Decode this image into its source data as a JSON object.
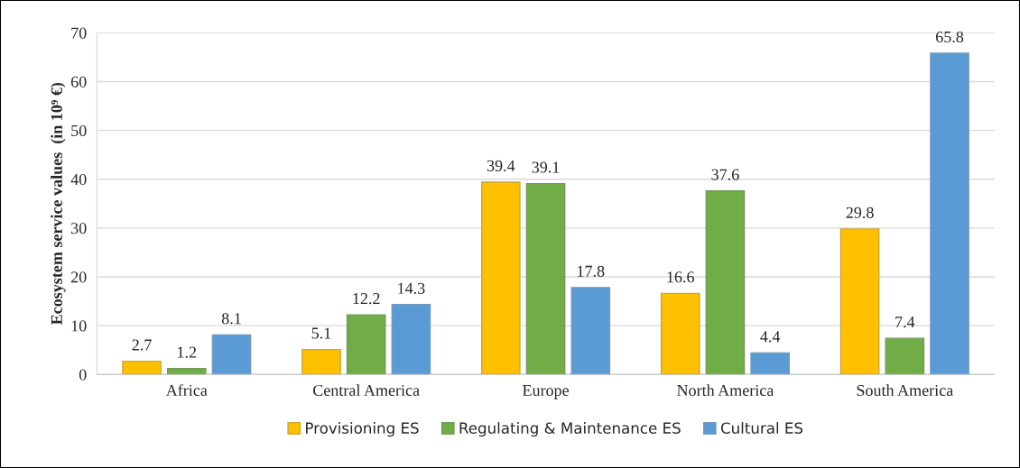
{
  "chart_data": {
    "type": "bar",
    "ylabel": "Ecosystem service values  (in 10⁹ €)",
    "categories": [
      "Africa",
      "Central America",
      "Europe",
      "North America",
      "South America"
    ],
    "series": [
      {
        "name": "Provisioning ES",
        "color": "#ffc000",
        "values": [
          2.7,
          5.1,
          39.4,
          16.6,
          29.8
        ]
      },
      {
        "name": "Regulating & Maintenance ES",
        "color": "#70ad47",
        "values": [
          1.2,
          12.2,
          39.1,
          37.6,
          7.4
        ]
      },
      {
        "name": "Cultural ES",
        "color": "#5b9bd5",
        "values": [
          8.1,
          14.3,
          17.8,
          4.4,
          65.8
        ]
      }
    ],
    "ylim": [
      0,
      70
    ],
    "yticks": [
      0,
      10,
      20,
      30,
      40,
      50,
      60,
      70
    ],
    "grid": "y",
    "legend": "bottom",
    "data_labels": true
  }
}
